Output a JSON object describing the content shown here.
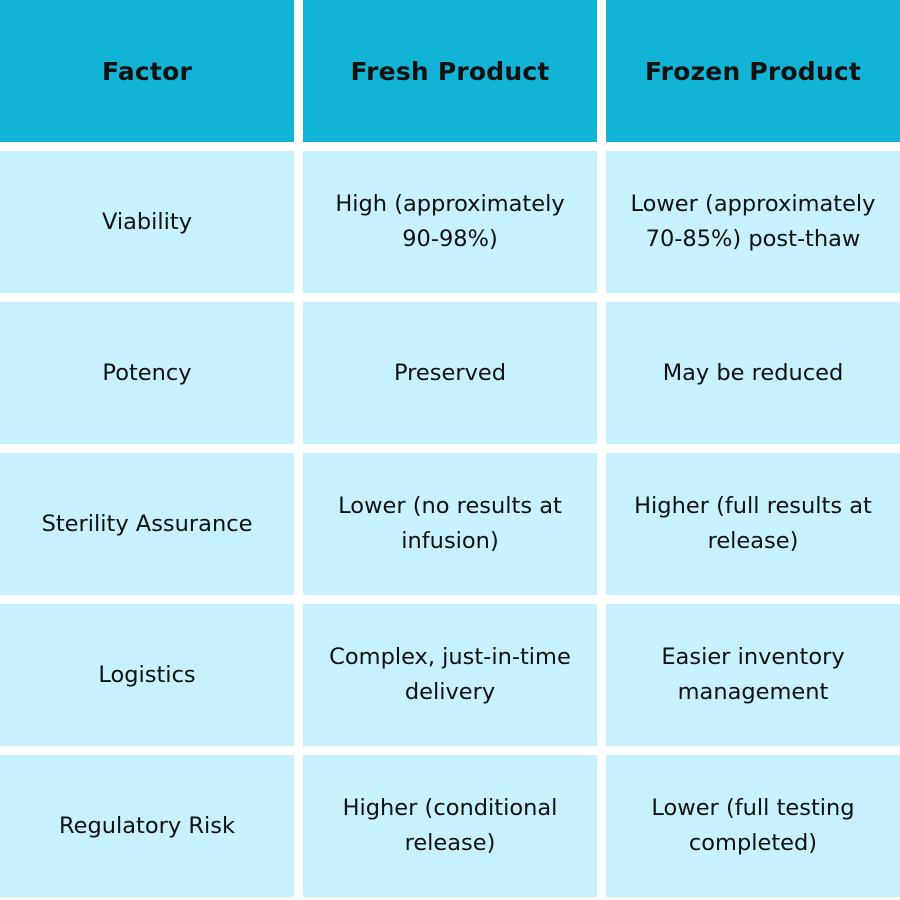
{
  "headers": [
    "Factor",
    "Fresh Product",
    "Frozen Product"
  ],
  "rows": [
    [
      "Viability",
      "High (approximately 90-98%)",
      "Lower (approximately 70-85%) post-thaw"
    ],
    [
      "Potency",
      "Preserved",
      "May be reduced"
    ],
    [
      "Sterility Assurance",
      "Lower (no results at infusion)",
      "Higher (full results at release)"
    ],
    [
      "Logistics",
      "Complex, just-in-time delivery",
      "Easier inventory management"
    ],
    [
      "Regulatory Risk",
      "Higher (conditional release)",
      "Lower (full testing completed)"
    ]
  ],
  "colors": {
    "header_bg": "#12b4d6",
    "cell_bg": "#c6f1fd",
    "text": "#111111"
  }
}
